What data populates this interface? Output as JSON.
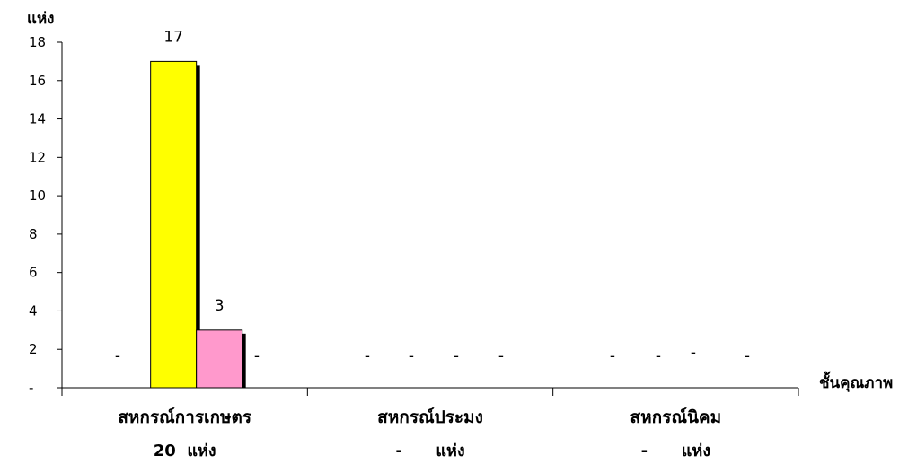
{
  "chart_data": {
    "type": "bar",
    "ylabel": "แห่ง",
    "xlabel": "ชั้นคุณภาพ",
    "ylim": [
      0,
      18
    ],
    "yticks": [
      "-",
      "2",
      "4",
      "6",
      "8",
      "10",
      "12",
      "14",
      "16",
      "18"
    ],
    "categories": [
      "สหกรณ์การเกษตร",
      "สหกรณ์ประมง",
      "สหกรณ์นิคม"
    ],
    "category_totals": [
      "20  แห่ง",
      "-      แห่ง",
      "-      แห่ง"
    ],
    "series": [
      {
        "color": "#ffff00",
        "values": [
          null,
          null,
          null
        ]
      },
      {
        "color": "#ffff00",
        "values": [
          17,
          null,
          null
        ]
      },
      {
        "color": "#ff99cc",
        "values": [
          3,
          null,
          null
        ]
      },
      {
        "color": "#cccccc",
        "values": [
          null,
          null,
          null
        ]
      }
    ],
    "value_labels": [
      [
        "-",
        "17",
        "3",
        "-"
      ],
      [
        "-",
        "-",
        "-",
        "-"
      ],
      [
        "-",
        "-",
        "-",
        "-"
      ]
    ],
    "grid": false,
    "legend": "none"
  }
}
